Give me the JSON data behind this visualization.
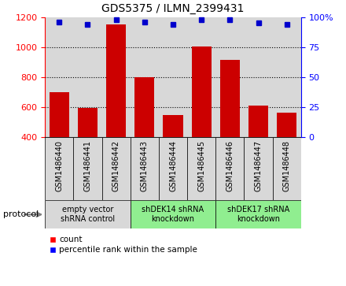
{
  "title": "GDS5375 / ILMN_2399431",
  "samples": [
    "GSM1486440",
    "GSM1486441",
    "GSM1486442",
    "GSM1486443",
    "GSM1486444",
    "GSM1486445",
    "GSM1486446",
    "GSM1486447",
    "GSM1486448"
  ],
  "counts": [
    700,
    595,
    1150,
    800,
    550,
    1005,
    915,
    610,
    565
  ],
  "percentile_ranks": [
    96,
    94,
    98,
    96,
    94,
    98,
    98,
    95,
    94
  ],
  "ylim_left": [
    400,
    1200
  ],
  "ylim_right": [
    0,
    100
  ],
  "yticks_left": [
    400,
    600,
    800,
    1000,
    1200
  ],
  "yticks_right": [
    0,
    25,
    50,
    75,
    100
  ],
  "group_labels": [
    "empty vector\nshRNA control",
    "shDEK14 shRNA\nknockdown",
    "shDEK17 shRNA\nknockdown"
  ],
  "group_starts": [
    0,
    3,
    6
  ],
  "group_ends": [
    3,
    6,
    9
  ],
  "group_bg_colors": [
    "#d8d8d8",
    "#90ee90",
    "#90ee90"
  ],
  "bar_color": "#cc0000",
  "dot_color": "#0000cc",
  "col_bg_color": "#d8d8d8",
  "protocol_label": "protocol",
  "legend_count_label": "count",
  "legend_pct_label": "percentile rank within the sample",
  "title_fontsize": 10,
  "tick_fontsize": 8,
  "label_fontsize": 7,
  "group_fontsize": 7
}
